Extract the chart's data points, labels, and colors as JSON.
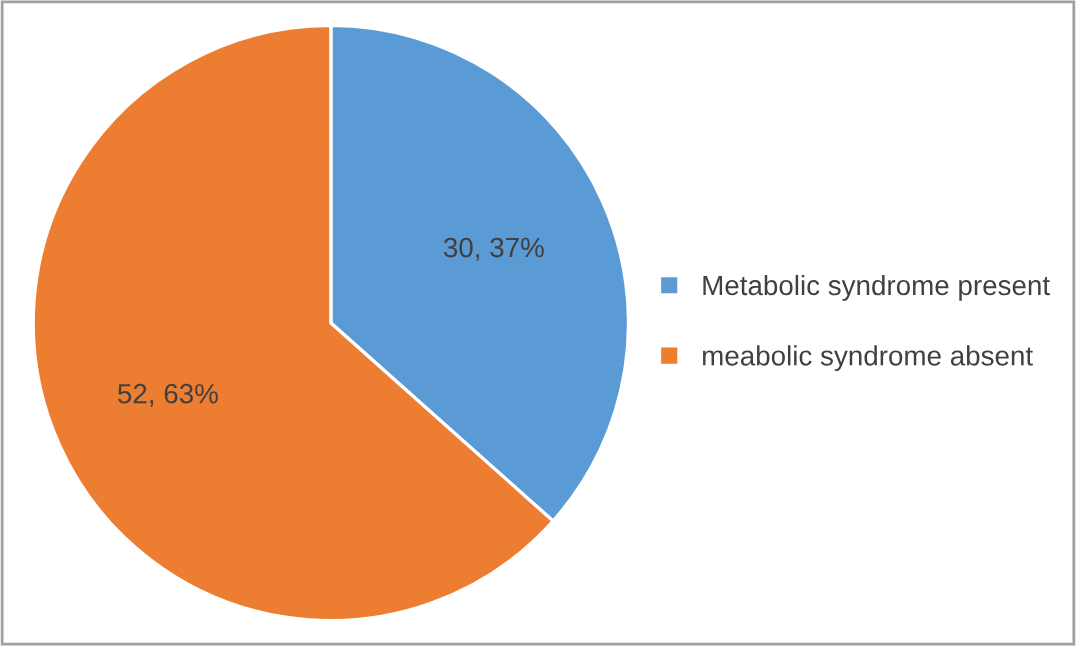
{
  "chart_data": {
    "type": "pie",
    "categories": [
      "Metabolic syndrome present",
      "meabolic syndrome absent"
    ],
    "values": [
      30,
      52
    ],
    "colors": [
      "#5b9bd5",
      "#ed7d31"
    ],
    "value_labels": [
      "30, 37%",
      "52, 63%"
    ],
    "legend": "right"
  }
}
